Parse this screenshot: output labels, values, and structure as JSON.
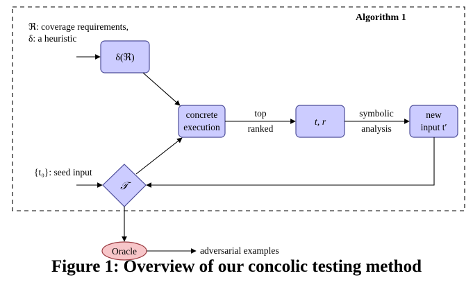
{
  "diagram": {
    "frame_label": "Algorithm 1",
    "inputs": {
      "requirements": "ℜ: coverage requirements,",
      "heuristic": "δ: a heuristic",
      "seed": "{t₀}: seed input"
    },
    "nodes": {
      "delta_r": "δ(ℜ)",
      "concrete_line1": "concrete",
      "concrete_line2": "execution",
      "t_r": "t, r",
      "new_input_line1": "new",
      "new_input_line2": "input t′",
      "tcal": "𝒯",
      "oracle": "Oracle"
    },
    "edge_labels": {
      "top": "top",
      "ranked": "ranked",
      "symbolic": "symbolic",
      "analysis": "analysis"
    },
    "output": "adversarial examples",
    "colors": {
      "node_fill": "#ccccff",
      "node_stroke": "#4d4d99",
      "oracle_fill": "#f7c6c9",
      "oracle_stroke": "#9a3a40"
    }
  },
  "caption": "Figure 1: Overview of our concolic testing method"
}
